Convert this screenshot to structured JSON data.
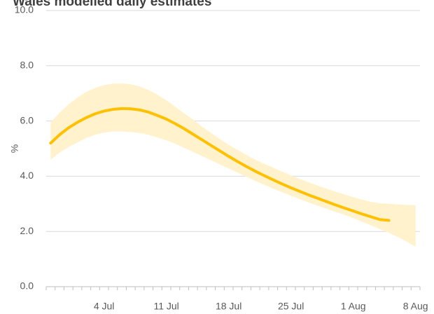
{
  "chart_data": {
    "type": "line",
    "title": "Wales modelled daily estimates",
    "y_label": "%",
    "categories": [
      null,
      null,
      null,
      null,
      null,
      null,
      "4 Jul",
      null,
      null,
      null,
      null,
      null,
      null,
      "11 Jul",
      null,
      null,
      null,
      null,
      null,
      null,
      "18 Jul",
      null,
      null,
      null,
      null,
      null,
      null,
      "25 Jul",
      null,
      null,
      null,
      null,
      null,
      null,
      "1 Aug",
      null,
      null,
      null,
      null,
      null,
      null,
      "8 Aug"
    ],
    "series": [
      {
        "color": "#FFC000",
        "values": [
          5.2,
          5.5,
          5.75,
          5.95,
          6.12,
          6.26,
          6.36,
          6.42,
          6.45,
          6.44,
          6.4,
          6.32,
          6.2,
          6.07,
          5.9,
          5.72,
          5.52,
          5.32,
          5.12,
          4.92,
          4.72,
          4.53,
          4.35,
          4.18,
          4.02,
          3.87,
          3.72,
          3.58,
          3.45,
          3.32,
          3.2,
          3.08,
          2.96,
          2.85,
          2.74,
          2.63,
          2.53,
          2.43,
          2.4,
          null,
          null,
          null
        ]
      }
    ],
    "band": {
      "color": "#FFF2CC",
      "lower": [
        4.6,
        4.85,
        5.05,
        5.22,
        5.38,
        5.5,
        5.58,
        5.62,
        5.62,
        5.6,
        5.56,
        5.5,
        5.4,
        5.3,
        5.17,
        5.03,
        4.88,
        4.73,
        4.58,
        4.43,
        4.28,
        4.13,
        3.98,
        3.83,
        3.69,
        3.55,
        3.42,
        3.29,
        3.17,
        3.05,
        2.93,
        2.82,
        2.71,
        2.6,
        2.48,
        2.35,
        2.22,
        2.08,
        1.95,
        1.8,
        1.63,
        1.45
      ],
      "upper": [
        5.95,
        6.3,
        6.6,
        6.85,
        7.05,
        7.2,
        7.3,
        7.35,
        7.36,
        7.33,
        7.25,
        7.12,
        6.95,
        6.75,
        6.52,
        6.28,
        6.05,
        5.8,
        5.57,
        5.35,
        5.14,
        4.95,
        4.77,
        4.6,
        4.45,
        4.31,
        4.17,
        4.03,
        3.9,
        3.78,
        3.66,
        3.55,
        3.44,
        3.34,
        3.24,
        3.15,
        3.07,
        3.02,
        3.0,
        2.98,
        2.96,
        2.95
      ]
    },
    "ylim": [
      0,
      10
    ],
    "yticks": [
      {
        "value": 0,
        "label": "0.0"
      },
      {
        "value": 2,
        "label": "2.0"
      },
      {
        "value": 4,
        "label": "4.0"
      },
      {
        "value": 6,
        "label": "6.0"
      },
      {
        "value": 8,
        "label": "8.0"
      },
      {
        "value": 10,
        "label": "10.0"
      }
    ],
    "grid": true
  }
}
